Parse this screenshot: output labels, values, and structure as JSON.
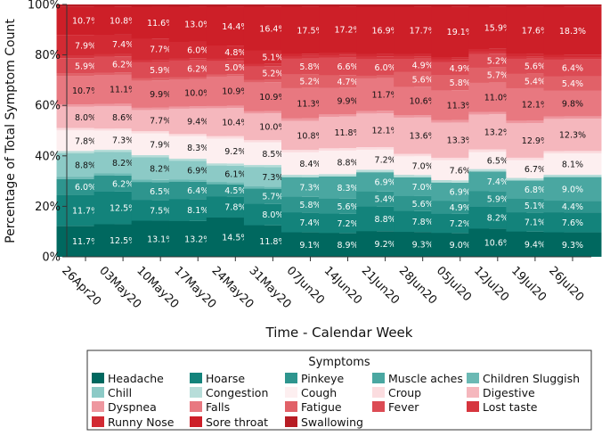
{
  "chart_data": {
    "type": "bar",
    "stacked": true,
    "normalized": true,
    "ylabel": "Percentage of Total Symptom Count",
    "xlabel": "Time - Calendar Week",
    "ylim": [
      0,
      100
    ],
    "yticks": [
      "0%",
      "20%",
      "40%",
      "60%",
      "80%",
      "100%"
    ],
    "categories": [
      "26Apr20",
      "03May20",
      "10May20",
      "17May20",
      "24May20",
      "31May20",
      "07Jun20",
      "14Jun20",
      "21Jun20",
      "28Jun20",
      "05Jul20",
      "12Jul20",
      "19Jul20",
      "26Jul20"
    ],
    "legend_title": "Symptoms",
    "legend_order": [
      "Headache",
      "Hoarse",
      "Pinkeye",
      "Muscle aches",
      "Children Sluggish",
      "Chill",
      "Congestion",
      "Cough",
      "Croup",
      "Digestive",
      "Dyspnea",
      "Falls",
      "Fatigue",
      "Fever",
      "Lost taste",
      "Runny Nose",
      "Sore throat",
      "Swallowing"
    ],
    "series": [
      {
        "name": "Headache",
        "color": "#00685f",
        "values": [
          11.7,
          12.5,
          13.1,
          13.2,
          14.5,
          11.8,
          9.1,
          8.9,
          9.2,
          9.3,
          9.0,
          10.6,
          9.4,
          9.3
        ],
        "labels": [
          "11.7%",
          "12.5%",
          "13.1%",
          "13.2%",
          "14.5%",
          "11.8%",
          "9.1%",
          "8.9%",
          "9.2%",
          "9.3%",
          "9.0%",
          "10.6%",
          "9.4%",
          "9.3%"
        ]
      },
      {
        "name": "Hoarse",
        "color": "#13837b",
        "values": [
          11.7,
          12.5,
          7.5,
          8.1,
          7.8,
          8.0,
          7.4,
          7.2,
          8.8,
          7.8,
          7.2,
          8.2,
          7.1,
          7.6
        ],
        "labels": [
          "11.7%",
          "12.5%",
          "7.5%",
          "8.1%",
          "7.8%",
          "8.0%",
          "7.4%",
          "7.2%",
          "8.8%",
          "7.8%",
          "7.2%",
          "8.2%",
          "7.1%",
          "7.6%"
        ]
      },
      {
        "name": "Pinkeye",
        "color": "#2e958e",
        "values": [
          6.0,
          6.2,
          6.5,
          6.4,
          4.5,
          5.7,
          5.8,
          5.6,
          5.4,
          5.6,
          4.9,
          5.9,
          5.1,
          4.4
        ],
        "labels": [
          "6.0%",
          "6.2%",
          "6.5%",
          "6.4%",
          "4.5%",
          "5.7%",
          "5.8%",
          "5.6%",
          "5.4%",
          "5.6%",
          "4.9%",
          "5.9%",
          "5.1%",
          "4.4%"
        ]
      },
      {
        "name": "Muscle aches",
        "color": "#4aa7a1",
        "values": [
          0,
          0,
          0,
          0,
          0,
          0,
          7.3,
          8.3,
          6.9,
          7.0,
          6.9,
          7.4,
          6.8,
          9.0
        ],
        "labels": [
          "",
          "",
          "",
          "",
          "",
          "",
          "7.3%",
          "8.3%",
          "6.9%",
          "7.0%",
          "6.9%",
          "7.4%",
          "6.8%",
          "9.0%"
        ]
      },
      {
        "name": "Children Sluggish",
        "color": "#6bb9b4",
        "values": [
          0.9,
          0.8,
          0.8,
          0.8,
          0.8,
          0.8,
          0,
          0,
          0,
          0,
          0,
          0,
          0,
          0
        ],
        "labels": [
          "",
          "",
          "",
          "",
          "",
          "",
          "",
          "",
          "",
          "",
          "",
          "",
          "",
          ""
        ]
      },
      {
        "name": "Chill",
        "color": "#8ccac6",
        "values": [
          8.8,
          8.2,
          8.2,
          6.9,
          6.1,
          7.3,
          0,
          0,
          0,
          0,
          0,
          0,
          0,
          0
        ],
        "labels": [
          "8.8%",
          "8.2%",
          "8.2%",
          "6.9%",
          "6.1%",
          "7.3%",
          "",
          "",
          "",
          "",
          "",
          "",
          "",
          ""
        ]
      },
      {
        "name": "Congestion",
        "color": "#b7ddd9",
        "values": [
          0.9,
          0.9,
          0.8,
          0.8,
          0.8,
          0.8,
          0.9,
          0.9,
          0.9,
          0.9,
          0.9,
          0.9,
          0.9,
          0.9
        ],
        "labels": [
          "",
          "",
          "",
          "",
          "",
          "",
          "",
          "",
          "",
          "",
          "",
          "",
          "",
          ""
        ]
      },
      {
        "name": "Cough",
        "color": "#fdeff0",
        "values": [
          7.8,
          7.3,
          7.9,
          8.3,
          9.2,
          8.5,
          8.4,
          8.8,
          7.2,
          7.0,
          7.6,
          6.5,
          6.7,
          8.1
        ],
        "labels": [
          "7.8%",
          "7.3%",
          "7.9%",
          "8.3%",
          "9.2%",
          "8.5%",
          "8.4%",
          "8.8%",
          "7.2%",
          "7.0%",
          "7.6%",
          "6.5%",
          "6.7%",
          "8.1%"
        ]
      },
      {
        "name": "Croup",
        "color": "#fbdcdf",
        "values": [
          0.9,
          0.8,
          0.8,
          0.8,
          0.9,
          0.8,
          0.9,
          0.9,
          0.9,
          0.9,
          0.9,
          0.9,
          0.9,
          0.9
        ],
        "labels": [
          "",
          "",
          "",
          "",
          "",
          "",
          "",
          "",
          "",
          "",
          "",
          "",
          "",
          ""
        ]
      },
      {
        "name": "Digestive",
        "color": "#f5b7bd",
        "values": [
          8.0,
          8.6,
          7.7,
          9.4,
          10.4,
          10.0,
          10.8,
          11.8,
          12.1,
          13.6,
          13.3,
          13.2,
          12.9,
          12.3
        ],
        "labels": [
          "8.0%",
          "8.6%",
          "7.7%",
          "9.4%",
          "10.4%",
          "10.0%",
          "10.8%",
          "11.8%",
          "12.1%",
          "13.6%",
          "13.3%",
          "13.2%",
          "12.9%",
          "12.3%"
        ]
      },
      {
        "name": "Dyspnea",
        "color": "#ee979f",
        "values": [
          0.9,
          0.9,
          0.8,
          0.8,
          0.8,
          0.8,
          0.9,
          0.9,
          0.9,
          0.9,
          0.9,
          0.9,
          0.9,
          0.9
        ],
        "labels": [
          "",
          "",
          "",
          "",
          "",
          "",
          "",
          "",
          "",
          "",
          "",
          "",
          "",
          ""
        ]
      },
      {
        "name": "Falls",
        "color": "#e87880",
        "values": [
          10.7,
          11.1,
          9.9,
          10.0,
          10.9,
          10.9,
          11.3,
          9.9,
          11.7,
          10.6,
          11.3,
          11.0,
          12.1,
          9.8
        ],
        "labels": [
          "10.7%",
          "11.1%",
          "9.9%",
          "10.0%",
          "10.9%",
          "10.9%",
          "11.3%",
          "9.9%",
          "11.7%",
          "10.6%",
          "11.3%",
          "11.0%",
          "12.1%",
          "9.8%"
        ]
      },
      {
        "name": "Fatigue",
        "color": "#e16168",
        "values": [
          0.9,
          0.9,
          0.8,
          0.8,
          0.8,
          0.8,
          5.2,
          4.7,
          0.9,
          5.6,
          5.8,
          5.7,
          5.4,
          5.4
        ],
        "labels": [
          "",
          "",
          "",
          "",
          "",
          "",
          "5.2%",
          "4.7%",
          "",
          "5.6%",
          "5.8%",
          "5.7%",
          "5.4%",
          "5.4%"
        ]
      },
      {
        "name": "Fever",
        "color": "#dc4b54",
        "values": [
          5.9,
          6.2,
          5.9,
          6.2,
          5.0,
          5.2,
          5.8,
          6.6,
          6.0,
          4.9,
          4.9,
          5.2,
          5.6,
          6.4
        ],
        "labels": [
          "5.9%",
          "6.2%",
          "5.9%",
          "6.2%",
          "5.0%",
          "5.2%",
          "5.8%",
          "6.6%",
          "6.0%",
          "4.9%",
          "4.9%",
          "5.2%",
          "5.6%",
          "6.4%"
        ]
      },
      {
        "name": "Lost taste",
        "color": "#d6353e",
        "values": [
          0.9,
          0.9,
          0.8,
          0.8,
          0.8,
          0.8,
          0.9,
          0.9,
          0.9,
          0.9,
          0.9,
          0.9,
          0.9,
          0.9
        ],
        "labels": [
          "",
          "",
          "",
          "",
          "",
          "",
          "",
          "",
          "",
          "",
          "",
          "",
          "",
          ""
        ]
      },
      {
        "name": "Runny Nose",
        "color": "#d22a33",
        "values": [
          7.9,
          7.4,
          7.7,
          6.0,
          4.8,
          5.1,
          0.9,
          0.9,
          0.9,
          0.9,
          0.9,
          0.9,
          0.9,
          0.9
        ],
        "labels": [
          "7.9%",
          "7.4%",
          "7.7%",
          "6.0%",
          "4.8%",
          "5.1%",
          "",
          "",
          "",
          "",
          "",
          "",
          "",
          ""
        ]
      },
      {
        "name": "Sore throat",
        "color": "#cd1f28",
        "values": [
          10.7,
          10.8,
          11.6,
          13.0,
          14.4,
          16.4,
          17.5,
          17.2,
          16.9,
          17.7,
          19.1,
          15.9,
          17.6,
          18.3
        ],
        "labels": [
          "10.7%",
          "10.8%",
          "11.6%",
          "13.0%",
          "14.4%",
          "16.4%",
          "17.5%",
          "17.2%",
          "16.9%",
          "17.7%",
          "19.1%",
          "15.9%",
          "17.6%",
          "18.3%"
        ]
      },
      {
        "name": "Swallowing",
        "color": "#b71c24",
        "values": [
          0.8,
          0.8,
          0.8,
          0.8,
          0.8,
          0.8,
          0.8,
          0.8,
          0.8,
          0.8,
          0.8,
          0.8,
          0.8,
          0.8
        ],
        "labels": [
          "",
          "",
          "",
          "",
          "",
          "",
          "",
          "",
          "",
          "",
          "",
          "",
          "",
          ""
        ]
      }
    ]
  }
}
